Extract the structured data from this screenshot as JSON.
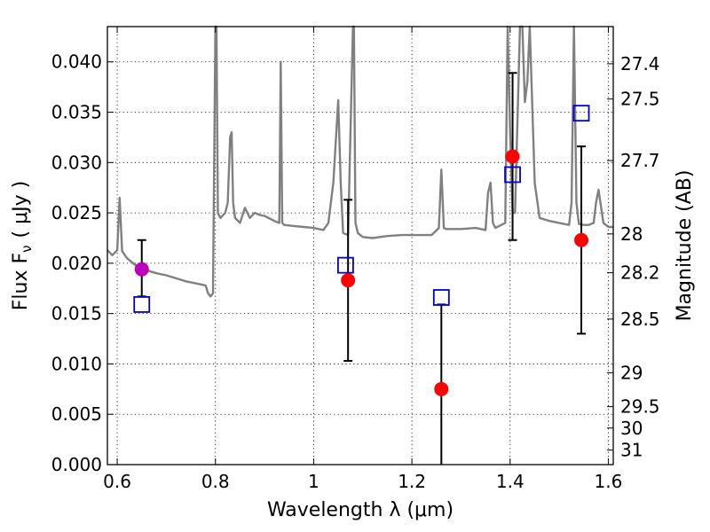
{
  "chart_data": {
    "type": "scatter",
    "xlabel": "Wavelength  λ (μm)",
    "ylabel": "Flux  F",
    "ylabel_sub": "ν",
    "ylabel_unit": "( μJy )",
    "y2label": "Magnitude (AB)",
    "xlim": [
      0.58,
      1.61
    ],
    "ylim": [
      0.0,
      0.0435
    ],
    "grid": true,
    "x_ticks": [
      0.6,
      0.8,
      1.0,
      1.2,
      1.4,
      1.6
    ],
    "x_tick_labels": [
      "0.6",
      "0.8",
      "1",
      "1.2",
      "1.4",
      "1.6"
    ],
    "y_ticks": [
      0.0,
      0.005,
      0.01,
      0.015,
      0.02,
      0.025,
      0.03,
      0.035,
      0.04
    ],
    "y_tick_labels": [
      "0.000",
      "0.005",
      "0.010",
      "0.015",
      "0.020",
      "0.025",
      "0.030",
      "0.035",
      "0.040"
    ],
    "y2_ticks": [
      27.4,
      27.5,
      27.7,
      28.0,
      28.2,
      28.5,
      29.0,
      29.5,
      30.0,
      31.0
    ],
    "y2_tick_labels": [
      "27.4",
      "27.5",
      "27.7",
      "28",
      "28.2",
      "28.5",
      "29",
      "29.5",
      "30",
      "31"
    ],
    "template_spectrum": {
      "color": "#808080",
      "x": [
        0.58,
        0.59,
        0.6,
        0.605,
        0.61,
        0.62,
        0.64,
        0.66,
        0.68,
        0.7,
        0.72,
        0.74,
        0.76,
        0.78,
        0.785,
        0.79,
        0.795,
        0.8,
        0.802,
        0.805,
        0.81,
        0.82,
        0.825,
        0.83,
        0.833,
        0.836,
        0.84,
        0.85,
        0.86,
        0.87,
        0.88,
        0.89,
        0.9,
        0.92,
        0.93,
        0.933,
        0.936,
        0.94,
        0.96,
        0.98,
        1.0,
        1.02,
        1.03,
        1.04,
        1.05,
        1.055,
        1.06,
        1.07,
        1.08,
        1.082,
        1.085,
        1.09,
        1.095,
        1.1,
        1.12,
        1.15,
        1.18,
        1.2,
        1.22,
        1.24,
        1.255,
        1.26,
        1.265,
        1.27,
        1.3,
        1.33,
        1.35,
        1.355,
        1.36,
        1.365,
        1.37,
        1.39,
        1.395,
        1.4,
        1.405,
        1.41,
        1.42,
        1.425,
        1.43,
        1.435,
        1.44,
        1.45,
        1.46,
        1.48,
        1.5,
        1.52,
        1.525,
        1.53,
        1.535,
        1.54,
        1.55,
        1.56,
        1.57,
        1.575,
        1.58,
        1.59,
        1.6,
        1.61
      ],
      "y": [
        0.0213,
        0.0208,
        0.0213,
        0.0265,
        0.0212,
        0.0205,
        0.0197,
        0.0193,
        0.019,
        0.0188,
        0.0185,
        0.0182,
        0.018,
        0.0178,
        0.017,
        0.0167,
        0.017,
        0.0435,
        0.0435,
        0.025,
        0.0245,
        0.025,
        0.026,
        0.0325,
        0.033,
        0.026,
        0.0245,
        0.024,
        0.0255,
        0.0245,
        0.025,
        0.0248,
        0.0247,
        0.0242,
        0.024,
        0.04,
        0.024,
        0.0238,
        0.0237,
        0.0236,
        0.0235,
        0.0233,
        0.024,
        0.028,
        0.0362,
        0.028,
        0.023,
        0.0228,
        0.0435,
        0.0435,
        0.024,
        0.023,
        0.0228,
        0.0226,
        0.0225,
        0.0227,
        0.0228,
        0.0228,
        0.0228,
        0.0228,
        0.0235,
        0.0293,
        0.0235,
        0.0234,
        0.0234,
        0.0235,
        0.0233,
        0.027,
        0.028,
        0.024,
        0.0235,
        0.024,
        0.0435,
        0.033,
        0.025,
        0.025,
        0.0435,
        0.0435,
        0.036,
        0.038,
        0.0435,
        0.028,
        0.0245,
        0.0242,
        0.024,
        0.0238,
        0.026,
        0.0435,
        0.026,
        0.0239,
        0.0238,
        0.0238,
        0.024,
        0.026,
        0.0273,
        0.024,
        0.0236,
        0.0236
      ]
    },
    "model_photometry": {
      "name": "",
      "color": "#0000cc",
      "marker": "open-square",
      "x": [
        0.65,
        1.065,
        1.26,
        1.405,
        1.545
      ],
      "y": [
        0.0159,
        0.0198,
        0.0166,
        0.0288,
        0.0349
      ]
    },
    "observed_photometry": {
      "name": "",
      "color": "#ff0000",
      "marker": "filled-circle",
      "x": [
        1.07,
        1.26,
        1.405,
        1.545
      ],
      "y": [
        0.0183,
        0.0075,
        0.0306,
        0.0223
      ],
      "y_err_low": [
        0.008,
        0.0075,
        0.0083,
        0.0093
      ],
      "y_err_high": [
        0.008,
        0.0084,
        0.0083,
        0.0093
      ]
    },
    "highlight_point": {
      "color": "#bb00bb",
      "marker": "filled-circle",
      "x": 0.65,
      "y": 0.0194,
      "y_err_low": 0.0027,
      "y_err_high": 0.0029
    }
  }
}
